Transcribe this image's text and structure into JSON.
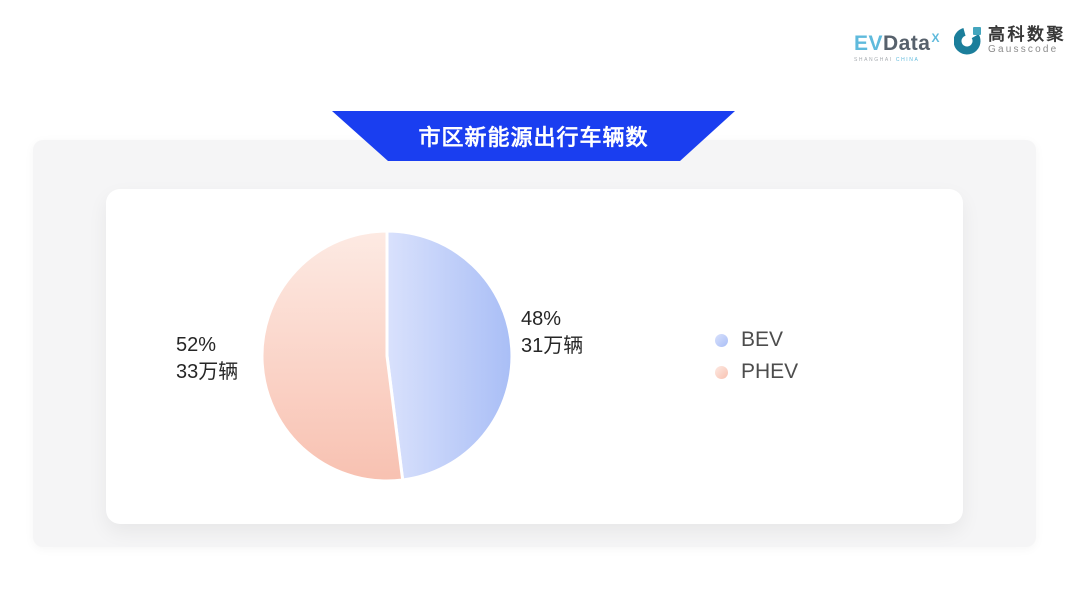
{
  "header": {
    "evdata_logo": {
      "ev": "EV",
      "data": "Data",
      "superscript": "X",
      "sub_left": "SHANGHAI",
      "sub_right": "CHINA",
      "color_blue": "#5FBADC",
      "color_dark": "#57616C"
    },
    "gausscode_logo": {
      "icon": "gausscode-g-icon",
      "cn": "高科数聚",
      "en": "Gausscode",
      "color_teal": "#1B7E9B",
      "color_teal_light": "#43A5BD"
    }
  },
  "banner": {
    "title": "市区新能源出行车辆数",
    "background": "#1A3EF0",
    "text_color": "#FFFFFF"
  },
  "chart_data": {
    "type": "pie",
    "title": "市区新能源出行车辆数",
    "start_angle_deg": 0,
    "clockwise": true,
    "border_color": "#FFFFFF",
    "border_width": 3,
    "legend_position": "right",
    "unit": "万辆",
    "series": [
      {
        "name": "BEV",
        "value": 31,
        "percent": 48,
        "percent_label": "48%",
        "value_label": "31万辆",
        "color_start": "#D9E1FC",
        "color_end": "#A9BEF6",
        "gradient_direction": "horizontal"
      },
      {
        "name": "PHEV",
        "value": 33,
        "percent": 52,
        "percent_label": "52%",
        "value_label": "33万辆",
        "color_start": "#FDEAE3",
        "color_end": "#F8C1B1",
        "gradient_direction": "vertical"
      }
    ]
  },
  "colors": {
    "panel_background": "#F5F5F6",
    "card_background": "#FFFFFF",
    "label_text": "#262626",
    "legend_text": "#4D4D4D"
  }
}
